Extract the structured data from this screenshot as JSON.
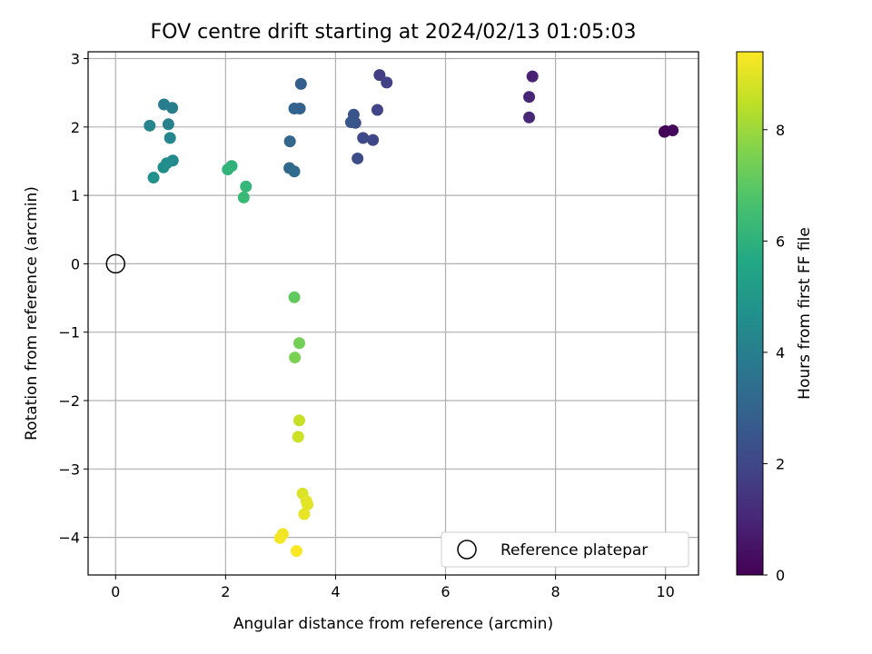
{
  "chart_data": {
    "type": "scatter",
    "title": "FOV centre drift starting at 2024/02/13 01:05:03",
    "xlabel": "Angular distance from reference (arcmin)",
    "ylabel": "Rotation from reference (arcmin)",
    "xlim": [
      -0.5,
      10.6
    ],
    "ylim": [
      -4.55,
      3.1
    ],
    "xticks": [
      0,
      2,
      4,
      6,
      8,
      10
    ],
    "xtick_labels": [
      "0",
      "2",
      "4",
      "6",
      "8",
      "10"
    ],
    "yticks": [
      -4,
      -3,
      -2,
      -1,
      0,
      1,
      2,
      3
    ],
    "ytick_labels": [
      "−4",
      "−3",
      "−2",
      "−1",
      "0",
      "1",
      "2",
      "3"
    ],
    "grid": true,
    "legend": {
      "label": "Reference platepar",
      "position": "lower-right"
    },
    "reference_point": {
      "x": 0,
      "y": 0
    },
    "colorbar": {
      "label": "Hours from first FF file",
      "min": 0,
      "max": 9.4,
      "ticks": [
        0,
        2,
        4,
        6,
        8
      ],
      "tick_labels": [
        "0",
        "2",
        "4",
        "6",
        "8"
      ],
      "colormap": "viridis"
    },
    "points": [
      {
        "x": 10.0,
        "y": 1.94,
        "t": 0.1
      },
      {
        "x": 10.13,
        "y": 1.95,
        "t": 0.2
      },
      {
        "x": 9.98,
        "y": 1.93,
        "t": 0.05
      },
      {
        "x": 7.58,
        "y": 2.74,
        "t": 0.9
      },
      {
        "x": 7.52,
        "y": 2.44,
        "t": 1.0
      },
      {
        "x": 7.52,
        "y": 2.14,
        "t": 1.1
      },
      {
        "x": 4.8,
        "y": 2.76,
        "t": 1.7
      },
      {
        "x": 4.93,
        "y": 2.65,
        "t": 1.8
      },
      {
        "x": 4.76,
        "y": 2.25,
        "t": 1.9
      },
      {
        "x": 4.68,
        "y": 1.81,
        "t": 2.0
      },
      {
        "x": 4.5,
        "y": 1.84,
        "t": 2.1
      },
      {
        "x": 4.4,
        "y": 1.54,
        "t": 2.2
      },
      {
        "x": 4.36,
        "y": 2.06,
        "t": 2.3
      },
      {
        "x": 4.33,
        "y": 2.18,
        "t": 2.4
      },
      {
        "x": 4.28,
        "y": 2.07,
        "t": 2.5
      },
      {
        "x": 3.37,
        "y": 2.63,
        "t": 2.8
      },
      {
        "x": 3.35,
        "y": 2.27,
        "t": 2.9
      },
      {
        "x": 3.25,
        "y": 2.27,
        "t": 3.0
      },
      {
        "x": 3.17,
        "y": 1.79,
        "t": 3.1
      },
      {
        "x": 3.16,
        "y": 1.4,
        "t": 3.2
      },
      {
        "x": 3.25,
        "y": 1.35,
        "t": 3.3
      },
      {
        "x": 0.88,
        "y": 2.33,
        "t": 3.9
      },
      {
        "x": 1.03,
        "y": 2.28,
        "t": 4.0
      },
      {
        "x": 0.96,
        "y": 2.04,
        "t": 4.1
      },
      {
        "x": 0.62,
        "y": 2.02,
        "t": 4.2
      },
      {
        "x": 0.99,
        "y": 1.84,
        "t": 4.3
      },
      {
        "x": 1.04,
        "y": 1.51,
        "t": 4.4
      },
      {
        "x": 0.93,
        "y": 1.47,
        "t": 4.5
      },
      {
        "x": 0.87,
        "y": 1.41,
        "t": 4.6
      },
      {
        "x": 0.69,
        "y": 1.26,
        "t": 4.7
      },
      {
        "x": 2.11,
        "y": 1.43,
        "t": 6.0
      },
      {
        "x": 2.04,
        "y": 1.38,
        "t": 6.1
      },
      {
        "x": 2.37,
        "y": 1.13,
        "t": 6.2
      },
      {
        "x": 2.33,
        "y": 0.97,
        "t": 6.3
      },
      {
        "x": 3.25,
        "y": -0.49,
        "t": 7.1
      },
      {
        "x": 3.34,
        "y": -1.16,
        "t": 7.4
      },
      {
        "x": 3.26,
        "y": -1.37,
        "t": 7.5
      },
      {
        "x": 3.34,
        "y": -2.29,
        "t": 8.6
      },
      {
        "x": 3.32,
        "y": -2.53,
        "t": 8.7
      },
      {
        "x": 3.4,
        "y": -3.36,
        "t": 8.9
      },
      {
        "x": 3.47,
        "y": -3.47,
        "t": 9.0
      },
      {
        "x": 3.49,
        "y": -3.52,
        "t": 9.0
      },
      {
        "x": 3.43,
        "y": -3.66,
        "t": 9.1
      },
      {
        "x": 3.04,
        "y": -3.95,
        "t": 9.2
      },
      {
        "x": 2.99,
        "y": -4.01,
        "t": 9.25
      },
      {
        "x": 3.29,
        "y": -4.2,
        "t": 9.35
      }
    ]
  }
}
